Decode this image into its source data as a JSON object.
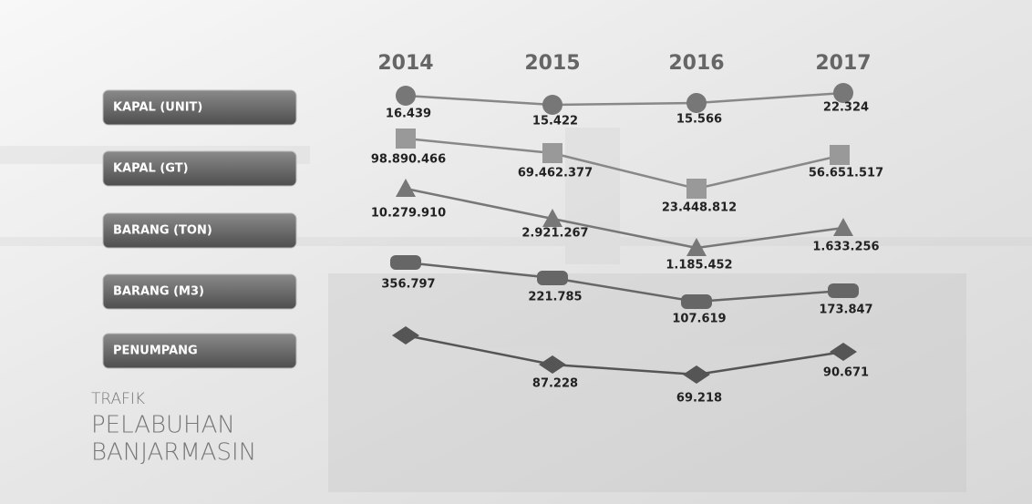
{
  "title": {
    "small": "TRAFIK",
    "line1": "PELABUHAN",
    "line2": "BANJARMASIN"
  },
  "years": [
    "2014",
    "2015",
    "2016",
    "2017"
  ],
  "rows": [
    {
      "label": "KAPAL (UNIT)",
      "values": [
        "16.439",
        "15.422",
        "15.566",
        "22.324"
      ]
    },
    {
      "label": "KAPAL (GT)",
      "values": [
        "98.890.466",
        "69.462.377",
        "23.448.812",
        "56.651.517"
      ]
    },
    {
      "label": "BARANG (TON)",
      "values": [
        "10.279.910",
        "2.921.267",
        "1.185.452",
        "1.633.256"
      ]
    },
    {
      "label": "BARANG (M3)",
      "values": [
        "356.797",
        "221.785",
        "107.619",
        "173.847"
      ]
    },
    {
      "label": "PENUMPANG",
      "values": [
        null,
        "87.228",
        "69.218",
        "90.671"
      ]
    }
  ]
}
